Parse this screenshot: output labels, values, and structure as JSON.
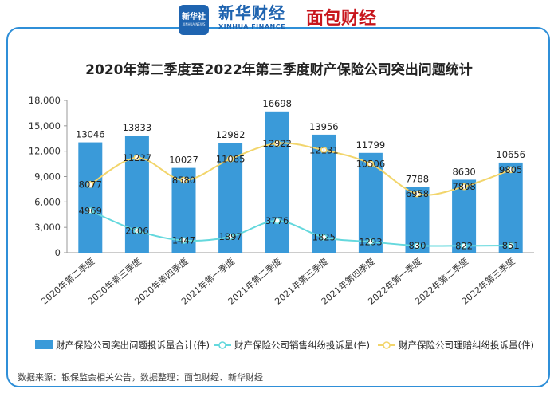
{
  "header": {
    "xinhua_logo_cn": "新华社",
    "xinhua_logo_en": "XINHUA NEWS",
    "xinhua_finance_cn": "新华财经",
    "xinhua_finance_en": "XINHUA FINANCE",
    "mianbao_brand": "面包财经"
  },
  "source_note": "数据来源：银保监会相关公告，数据整理：面包财经、新华财经",
  "colors": {
    "bar": "#3a9ad9",
    "sales_line": "#64d8dd",
    "claims_line": "#f2d56b",
    "frame": "#2f8fd8",
    "brand_red": "#c8161d",
    "brand_blue": "#1f64b0"
  },
  "chart_data": {
    "type": "bar",
    "title": "2020年第二季度至2022年第三季度财产保险公司突出问题统计",
    "categories": [
      "2020年第二季度",
      "2020年第三季度",
      "2020年第四季度",
      "2021年第一季度",
      "2021年第二季度",
      "2021年第三季度",
      "2021年第四季度",
      "2022年第一季度",
      "2022年第二季度",
      "2022年第三季度"
    ],
    "series": [
      {
        "name": "财产保险公司突出问题投诉量合计(件)",
        "type": "bar",
        "values": [
          13046,
          13833,
          10027,
          12982,
          16698,
          13956,
          11799,
          7788,
          8630,
          10656
        ]
      },
      {
        "name": "财产保险公司销售纠纷投诉量(件)",
        "type": "line",
        "values": [
          4969,
          2606,
          1447,
          1897,
          3776,
          1825,
          1293,
          830,
          822,
          851
        ]
      },
      {
        "name": "财产保险公司理赔纠纷投诉量(件)",
        "type": "line",
        "values": [
          8077,
          11227,
          8580,
          11085,
          12922,
          12131,
          10506,
          6958,
          7808,
          9805
        ]
      }
    ],
    "yticks": [
      "0",
      "3,000",
      "6,000",
      "9,000",
      "12,000",
      "15,000",
      "18,000"
    ],
    "ylim": [
      0,
      18000
    ],
    "grid": false,
    "legend_position": "bottom"
  }
}
